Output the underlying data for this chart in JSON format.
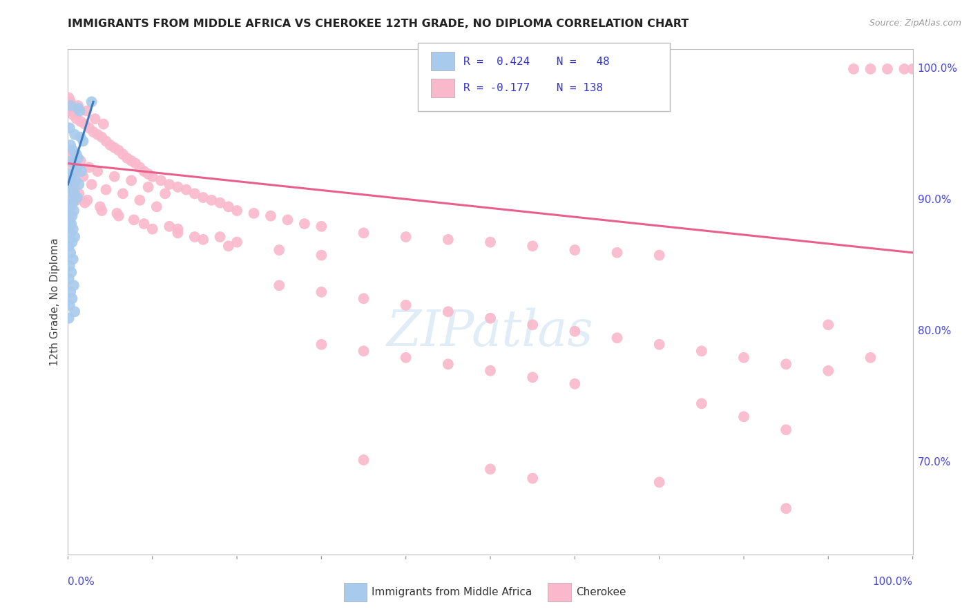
{
  "title": "IMMIGRANTS FROM MIDDLE AFRICA VS CHEROKEE 12TH GRADE, NO DIPLOMA CORRELATION CHART",
  "source": "Source: ZipAtlas.com",
  "ylabel": "12th Grade, No Diploma",
  "right_yticks": [
    70.0,
    80.0,
    90.0,
    100.0
  ],
  "right_ytick_labels": [
    "70.0%",
    "80.0%",
    "90.0%",
    "100.0%"
  ],
  "blue_color": "#a8caec",
  "pink_color": "#f9b8cb",
  "blue_line_color": "#3a7bbf",
  "pink_line_color": "#e8608a",
  "legend_text_color": "#3333cc",
  "axis_label_color": "#4444dd",
  "blue_scatter": [
    [
      0.3,
      97.2
    ],
    [
      1.2,
      97.0
    ],
    [
      1.4,
      96.8
    ],
    [
      2.8,
      97.5
    ],
    [
      0.2,
      95.5
    ],
    [
      0.8,
      95.0
    ],
    [
      1.5,
      94.8
    ],
    [
      1.8,
      94.5
    ],
    [
      0.3,
      94.2
    ],
    [
      0.6,
      93.8
    ],
    [
      1.0,
      93.5
    ],
    [
      1.2,
      93.2
    ],
    [
      0.4,
      93.0
    ],
    [
      0.7,
      92.8
    ],
    [
      1.1,
      92.5
    ],
    [
      1.6,
      92.2
    ],
    [
      0.2,
      92.0
    ],
    [
      0.5,
      91.8
    ],
    [
      0.9,
      91.5
    ],
    [
      1.3,
      91.2
    ],
    [
      0.1,
      91.0
    ],
    [
      0.4,
      90.8
    ],
    [
      0.8,
      90.5
    ],
    [
      1.1,
      90.2
    ],
    [
      0.2,
      90.0
    ],
    [
      0.6,
      89.8
    ],
    [
      0.3,
      89.5
    ],
    [
      0.7,
      89.2
    ],
    [
      0.1,
      89.0
    ],
    [
      0.5,
      88.8
    ],
    [
      0.2,
      88.5
    ],
    [
      0.4,
      88.2
    ],
    [
      0.6,
      87.8
    ],
    [
      0.3,
      87.5
    ],
    [
      0.8,
      87.2
    ],
    [
      0.5,
      86.8
    ],
    [
      0.1,
      86.5
    ],
    [
      0.3,
      86.0
    ],
    [
      0.6,
      85.5
    ],
    [
      0.2,
      85.0
    ],
    [
      0.4,
      84.5
    ],
    [
      0.1,
      84.0
    ],
    [
      0.7,
      83.5
    ],
    [
      0.3,
      83.0
    ],
    [
      0.5,
      82.5
    ],
    [
      0.2,
      82.0
    ],
    [
      0.8,
      81.5
    ],
    [
      0.1,
      81.0
    ]
  ],
  "pink_scatter": [
    [
      0.1,
      97.8
    ],
    [
      0.3,
      97.5
    ],
    [
      0.5,
      97.2
    ],
    [
      0.8,
      97.0
    ],
    [
      0.2,
      96.8
    ],
    [
      0.6,
      96.5
    ],
    [
      1.0,
      96.2
    ],
    [
      1.5,
      96.0
    ],
    [
      2.0,
      95.8
    ],
    [
      2.5,
      95.5
    ],
    [
      3.0,
      95.2
    ],
    [
      3.5,
      95.0
    ],
    [
      4.0,
      94.8
    ],
    [
      4.5,
      94.5
    ],
    [
      5.0,
      94.2
    ],
    [
      5.5,
      94.0
    ],
    [
      6.0,
      93.8
    ],
    [
      6.5,
      93.5
    ],
    [
      7.0,
      93.2
    ],
    [
      7.5,
      93.0
    ],
    [
      1.2,
      97.2
    ],
    [
      2.2,
      96.8
    ],
    [
      3.2,
      96.2
    ],
    [
      4.2,
      95.8
    ],
    [
      8.0,
      92.8
    ],
    [
      8.5,
      92.5
    ],
    [
      9.0,
      92.2
    ],
    [
      9.5,
      92.0
    ],
    [
      10.0,
      91.8
    ],
    [
      11.0,
      91.5
    ],
    [
      12.0,
      91.2
    ],
    [
      13.0,
      91.0
    ],
    [
      14.0,
      90.8
    ],
    [
      15.0,
      90.5
    ],
    [
      16.0,
      90.2
    ],
    [
      17.0,
      90.0
    ],
    [
      18.0,
      89.8
    ],
    [
      19.0,
      89.5
    ],
    [
      20.0,
      89.2
    ],
    [
      22.0,
      89.0
    ],
    [
      24.0,
      88.8
    ],
    [
      26.0,
      88.5
    ],
    [
      28.0,
      88.2
    ],
    [
      30.0,
      88.0
    ],
    [
      35.0,
      87.5
    ],
    [
      40.0,
      87.2
    ],
    [
      45.0,
      87.0
    ],
    [
      50.0,
      86.8
    ],
    [
      55.0,
      86.5
    ],
    [
      60.0,
      86.2
    ],
    [
      65.0,
      86.0
    ],
    [
      70.0,
      85.8
    ],
    [
      0.5,
      93.5
    ],
    [
      1.5,
      93.0
    ],
    [
      2.5,
      92.5
    ],
    [
      3.5,
      92.2
    ],
    [
      5.5,
      91.8
    ],
    [
      7.5,
      91.5
    ],
    [
      9.5,
      91.0
    ],
    [
      11.5,
      90.5
    ],
    [
      0.4,
      92.8
    ],
    [
      0.9,
      92.2
    ],
    [
      1.8,
      91.8
    ],
    [
      2.8,
      91.2
    ],
    [
      4.5,
      90.8
    ],
    [
      6.5,
      90.5
    ],
    [
      8.5,
      90.0
    ],
    [
      10.5,
      89.5
    ],
    [
      0.3,
      91.5
    ],
    [
      0.7,
      91.0
    ],
    [
      1.3,
      90.5
    ],
    [
      2.3,
      90.0
    ],
    [
      3.8,
      89.5
    ],
    [
      5.8,
      89.0
    ],
    [
      7.8,
      88.5
    ],
    [
      12.0,
      88.0
    ],
    [
      15.0,
      87.2
    ],
    [
      20.0,
      86.8
    ],
    [
      25.0,
      86.2
    ],
    [
      30.0,
      85.8
    ],
    [
      10.0,
      87.8
    ],
    [
      13.0,
      87.5
    ],
    [
      16.0,
      87.0
    ],
    [
      19.0,
      86.5
    ],
    [
      0.6,
      90.5
    ],
    [
      1.0,
      90.0
    ],
    [
      2.0,
      89.8
    ],
    [
      4.0,
      89.2
    ],
    [
      6.0,
      88.8
    ],
    [
      9.0,
      88.2
    ],
    [
      13.0,
      87.8
    ],
    [
      18.0,
      87.2
    ],
    [
      25.0,
      83.5
    ],
    [
      30.0,
      83.0
    ],
    [
      35.0,
      82.5
    ],
    [
      40.0,
      82.0
    ],
    [
      45.0,
      81.5
    ],
    [
      50.0,
      81.0
    ],
    [
      55.0,
      80.5
    ],
    [
      60.0,
      80.0
    ],
    [
      65.0,
      79.5
    ],
    [
      70.0,
      79.0
    ],
    [
      75.0,
      78.5
    ],
    [
      80.0,
      78.0
    ],
    [
      85.0,
      77.5
    ],
    [
      90.0,
      77.0
    ],
    [
      30.0,
      79.0
    ],
    [
      35.0,
      78.5
    ],
    [
      40.0,
      78.0
    ],
    [
      45.0,
      77.5
    ],
    [
      50.0,
      77.0
    ],
    [
      55.0,
      76.5
    ],
    [
      60.0,
      76.0
    ],
    [
      95.0,
      78.0
    ],
    [
      90.0,
      80.5
    ],
    [
      35.0,
      70.2
    ],
    [
      50.0,
      69.5
    ],
    [
      55.0,
      68.8
    ],
    [
      70.0,
      68.5
    ],
    [
      85.0,
      66.5
    ],
    [
      93.0,
      100.0
    ],
    [
      95.0,
      100.0
    ],
    [
      97.0,
      100.0
    ],
    [
      99.0,
      100.0
    ],
    [
      100.0,
      100.0
    ],
    [
      75.0,
      74.5
    ],
    [
      80.0,
      73.5
    ],
    [
      85.0,
      72.5
    ]
  ],
  "blue_trend_x": [
    0.0,
    3.0
  ],
  "blue_trend_y": [
    91.2,
    97.5
  ],
  "pink_trend_x": [
    0.0,
    100.0
  ],
  "pink_trend_y": [
    92.8,
    86.0
  ],
  "xmin": 0.0,
  "xmax": 100.0,
  "ymin": 63.0,
  "ymax": 101.5
}
